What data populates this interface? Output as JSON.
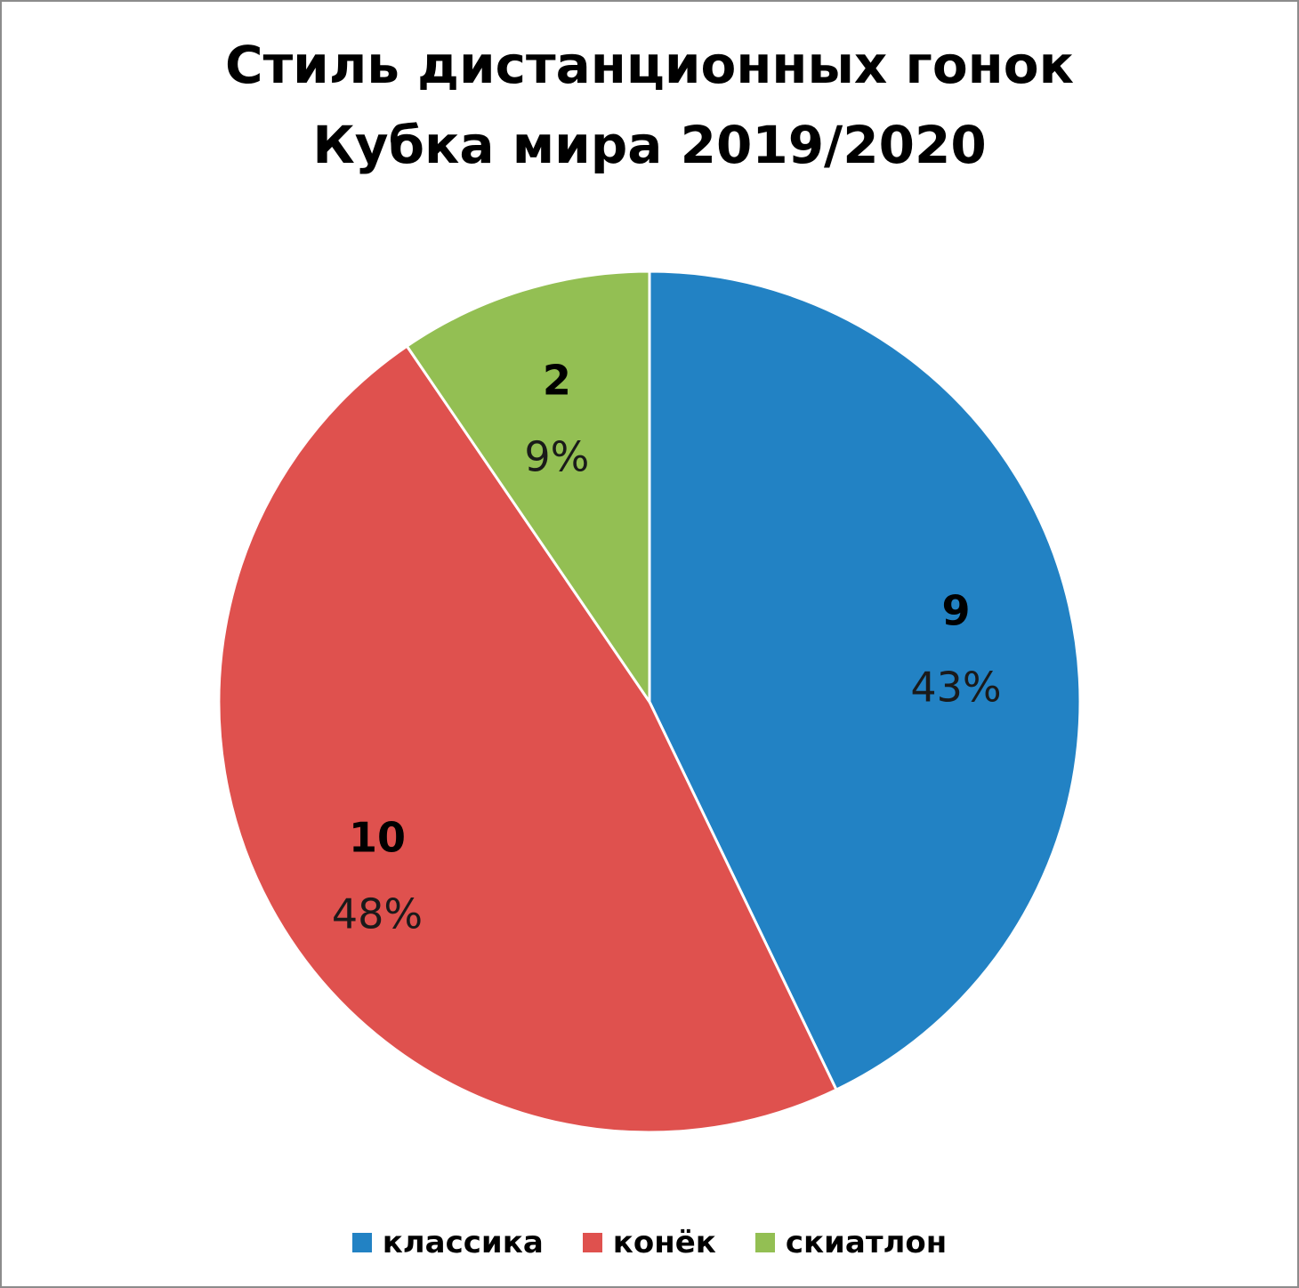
{
  "chart_data": {
    "type": "pie",
    "title_lines": [
      "Стиль дистанционных гонок",
      "Кубка мира 2019/2020"
    ],
    "categories": [
      "классика",
      "конёк",
      "скиатлон"
    ],
    "values": [
      9,
      10,
      2
    ],
    "percent_labels": [
      "43%",
      "48%",
      "9%"
    ],
    "value_labels": [
      "9",
      "10",
      "2"
    ],
    "colors": [
      "#2282C4",
      "#DF514E",
      "#93BF53"
    ],
    "start_angle": "12 o'clock",
    "direction": "clockwise",
    "legend_position": "bottom"
  }
}
